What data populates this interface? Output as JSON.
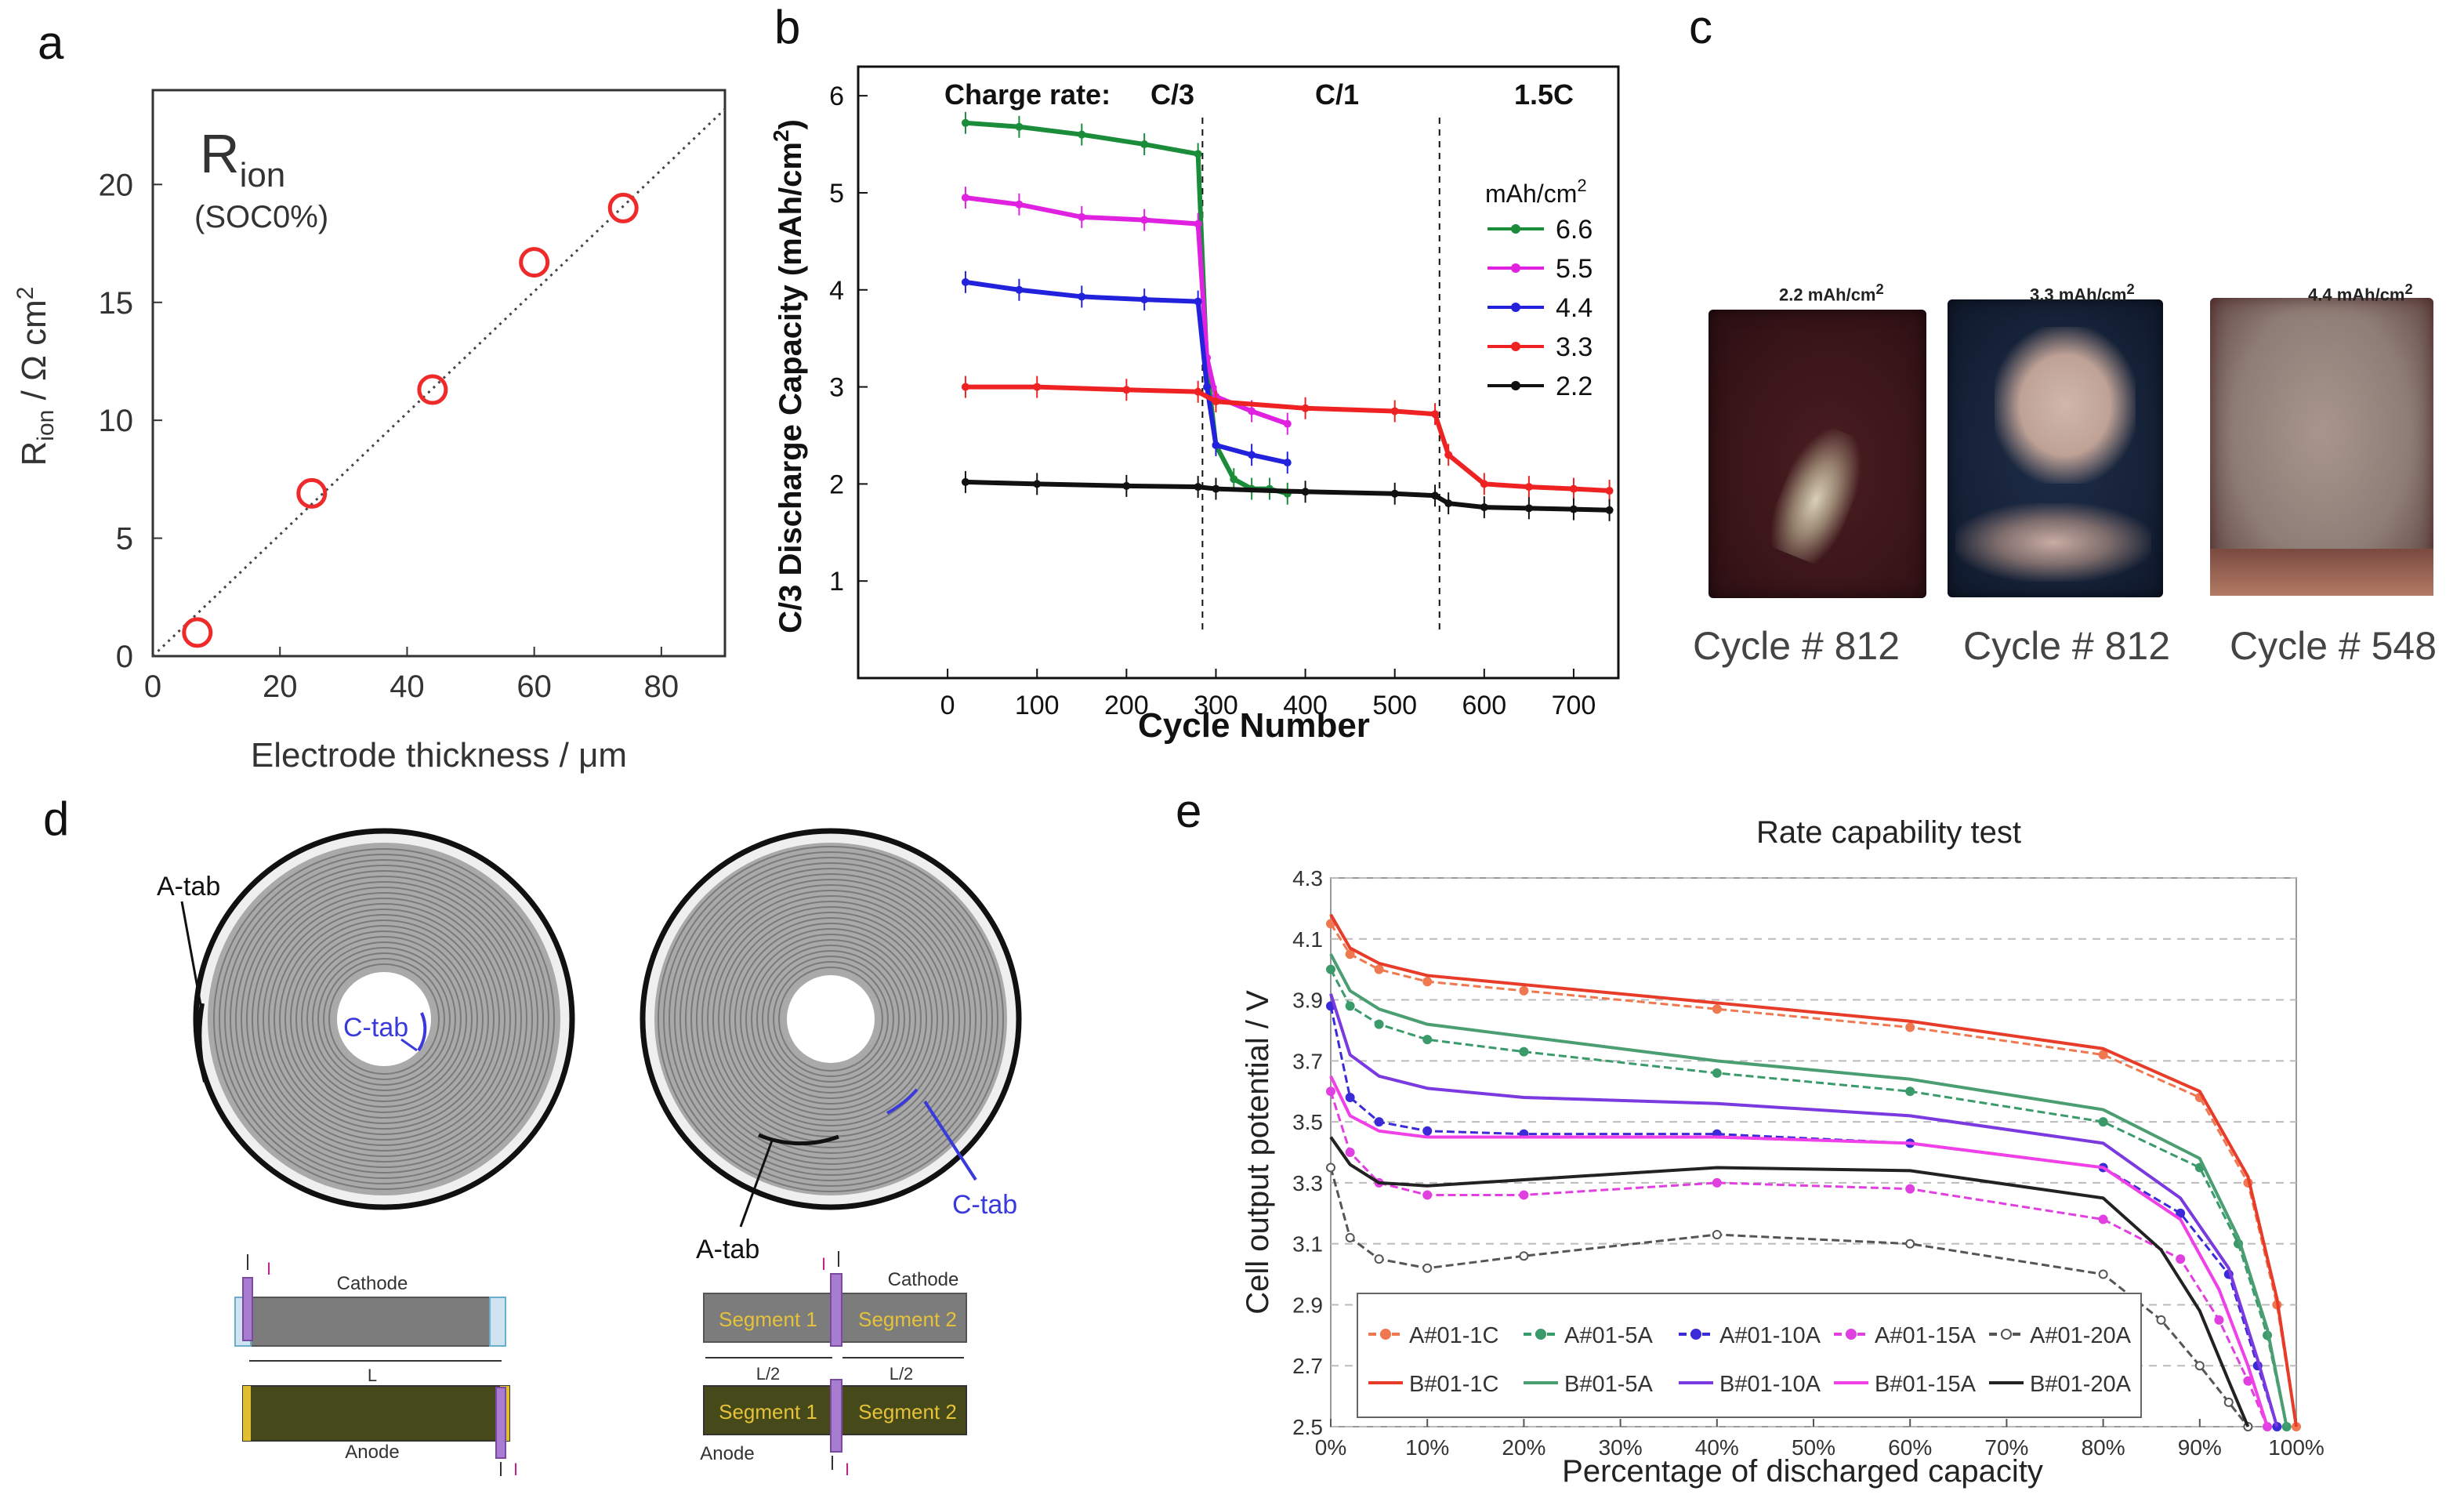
{
  "panels": {
    "a": "a",
    "b": "b",
    "c": "c",
    "d": "d",
    "e": "e"
  },
  "panel_a": {
    "label_main": "R",
    "label_sub": "ion",
    "label_soc": "(SOC0%)",
    "ylabel_pre": "R",
    "ylabel_sub": "ion",
    "ylabel_post": " / Ω cm",
    "ylabel_sup": "2",
    "xlabel": "Electrode thickness / μm"
  },
  "panel_b": {
    "charge_rate_label": "Charge rate:",
    "rate_c3": "C/3",
    "rate_c1": "C/1",
    "rate_15c": "1.5C",
    "legend_title": "mAh/cm",
    "legend_title_sup": "2",
    "ylabel": "C/3 Discharge Capacity (mAh/cm",
    "ylabel_sup": "2",
    "ylabel_end": ")",
    "xlabel": "Cycle Number"
  },
  "panel_c": {
    "photos": [
      {
        "label": "2.2 mAh/cm",
        "sup": "2",
        "caption": "Cycle # 812"
      },
      {
        "label": "3.3 mAh/cm",
        "sup": "2",
        "caption": "Cycle # 812"
      },
      {
        "label": "4.4 mAh/cm",
        "sup": "2",
        "caption": "Cycle # 548"
      }
    ]
  },
  "panel_d": {
    "a_tab": "A-tab",
    "c_tab": "C-tab",
    "cathode": "Cathode",
    "anode": "Anode",
    "L": "L",
    "L2": "L/2",
    "segment1": "Segment 1",
    "segment2": "Segment 2",
    "current": "I"
  },
  "panel_e": {
    "title": "Rate capability test",
    "xlabel": "Percentage of discharged capacity",
    "ylabel": "Cell output potential / V"
  },
  "chart_data": [
    {
      "id": "a",
      "type": "scatter",
      "title": "Rion (SOC0%)",
      "xlabel": "Electrode thickness / μm",
      "ylabel": "Rion / Ω cm2",
      "xlim": [
        0,
        90
      ],
      "ylim": [
        0,
        24
      ],
      "xticks": [
        0,
        20,
        40,
        60,
        80
      ],
      "yticks": [
        0,
        5,
        10,
        15,
        20
      ],
      "x": [
        7,
        25,
        44,
        60,
        74
      ],
      "y": [
        1.0,
        6.9,
        11.3,
        16.7,
        19.0
      ],
      "fit_line": {
        "x": [
          0,
          90
        ],
        "y": [
          0,
          23.2
        ],
        "style": "dotted"
      }
    },
    {
      "id": "b",
      "type": "line",
      "xlabel": "Cycle Number",
      "ylabel": "C/3 Discharge Capacity (mAh/cm2)",
      "xlim": [
        -100,
        750
      ],
      "ylim": [
        0,
        6.3
      ],
      "xticks": [
        0,
        100,
        200,
        300,
        400,
        500,
        600,
        700
      ],
      "yticks": [
        1,
        2,
        3,
        4,
        5,
        6
      ],
      "rate_boundaries": [
        285,
        550
      ],
      "series": [
        {
          "name": "6.6",
          "color": "#1a8c3a",
          "x": [
            20,
            80,
            150,
            220,
            280,
            290,
            300,
            320,
            340,
            360,
            380
          ],
          "y": [
            5.72,
            5.68,
            5.6,
            5.5,
            5.4,
            3.2,
            2.4,
            2.05,
            1.95,
            1.95,
            1.9
          ]
        },
        {
          "name": "5.5",
          "color": "#e022e0",
          "x": [
            20,
            80,
            150,
            220,
            280,
            290,
            300,
            340,
            380
          ],
          "y": [
            4.95,
            4.88,
            4.75,
            4.72,
            4.68,
            3.3,
            2.9,
            2.75,
            2.62
          ]
        },
        {
          "name": "4.4",
          "color": "#2222dd",
          "x": [
            20,
            80,
            150,
            220,
            280,
            290,
            300,
            340,
            380
          ],
          "y": [
            4.08,
            4.0,
            3.93,
            3.9,
            3.88,
            3.0,
            2.4,
            2.3,
            2.22
          ]
        },
        {
          "name": "3.3",
          "color": "#ee2222",
          "x": [
            20,
            100,
            200,
            280,
            300,
            400,
            500,
            545,
            560,
            600,
            650,
            700,
            740
          ],
          "y": [
            3.0,
            3.0,
            2.97,
            2.95,
            2.85,
            2.78,
            2.75,
            2.72,
            2.3,
            2.0,
            1.97,
            1.95,
            1.93
          ]
        },
        {
          "name": "2.2",
          "color": "#111111",
          "x": [
            20,
            100,
            200,
            280,
            300,
            400,
            500,
            545,
            560,
            600,
            650,
            700,
            740
          ],
          "y": [
            2.02,
            2.0,
            1.98,
            1.97,
            1.95,
            1.92,
            1.9,
            1.88,
            1.8,
            1.76,
            1.75,
            1.74,
            1.73
          ]
        }
      ]
    },
    {
      "id": "e",
      "type": "line",
      "title": "Rate capability test",
      "xlabel": "Percentage of discharged capacity",
      "ylabel": "Cell output potential / V",
      "xlim": [
        0,
        100
      ],
      "ylim": [
        2.5,
        4.3
      ],
      "xticks": [
        "0%",
        "10%",
        "20%",
        "30%",
        "40%",
        "50%",
        "60%",
        "70%",
        "80%",
        "90%",
        "100%"
      ],
      "yticks": [
        2.5,
        2.7,
        2.9,
        3.1,
        3.3,
        3.5,
        3.7,
        3.9,
        4.1,
        4.3
      ],
      "series": [
        {
          "name": "A#01-1C",
          "color": "#f07850",
          "marker": "+",
          "x": [
            0,
            2,
            5,
            10,
            20,
            40,
            60,
            80,
            90,
            95,
            98,
            100
          ],
          "y": [
            4.15,
            4.05,
            4.0,
            3.96,
            3.93,
            3.87,
            3.81,
            3.72,
            3.58,
            3.3,
            2.9,
            2.5
          ]
        },
        {
          "name": "A#01-5A",
          "color": "#3a9a6a",
          "marker": "diamond",
          "x": [
            0,
            2,
            5,
            10,
            20,
            40,
            60,
            80,
            90,
            94,
            97,
            99
          ],
          "y": [
            4.0,
            3.88,
            3.82,
            3.77,
            3.73,
            3.66,
            3.6,
            3.5,
            3.35,
            3.1,
            2.8,
            2.5
          ]
        },
        {
          "name": "A#01-10A",
          "color": "#3a2ad8",
          "marker": "triangle",
          "x": [
            0,
            2,
            5,
            10,
            20,
            40,
            60,
            80,
            88,
            93,
            96,
            98
          ],
          "y": [
            3.88,
            3.58,
            3.5,
            3.47,
            3.46,
            3.46,
            3.43,
            3.35,
            3.2,
            3.0,
            2.7,
            2.5
          ]
        },
        {
          "name": "A#01-15A",
          "color": "#e040e0",
          "marker": "circle",
          "x": [
            0,
            2,
            5,
            10,
            20,
            40,
            60,
            80,
            88,
            92,
            95,
            97
          ],
          "y": [
            3.6,
            3.4,
            3.3,
            3.26,
            3.26,
            3.3,
            3.28,
            3.18,
            3.05,
            2.85,
            2.65,
            2.5
          ]
        },
        {
          "name": "A#01-20A",
          "color": "#555555",
          "marker": "open-circle",
          "x": [
            0,
            2,
            5,
            10,
            20,
            40,
            60,
            80,
            86,
            90,
            93,
            95
          ],
          "y": [
            3.35,
            3.12,
            3.05,
            3.02,
            3.06,
            3.13,
            3.1,
            3.0,
            2.85,
            2.7,
            2.58,
            2.5
          ]
        },
        {
          "name": "B#01-1C",
          "color": "#e83c2a",
          "marker": "none",
          "x": [
            0,
            2,
            5,
            10,
            20,
            40,
            60,
            80,
            90,
            95,
            98,
            100
          ],
          "y": [
            4.18,
            4.07,
            4.02,
            3.98,
            3.95,
            3.89,
            3.83,
            3.74,
            3.6,
            3.32,
            2.92,
            2.5
          ]
        },
        {
          "name": "B#01-5A",
          "color": "#4a9e72",
          "marker": "none",
          "x": [
            0,
            2,
            5,
            10,
            20,
            40,
            60,
            80,
            90,
            94,
            97,
            99
          ],
          "y": [
            4.05,
            3.93,
            3.87,
            3.82,
            3.78,
            3.7,
            3.64,
            3.54,
            3.38,
            3.12,
            2.82,
            2.5
          ]
        },
        {
          "name": "B#01-10A",
          "color": "#7a3ae0",
          "marker": "none",
          "x": [
            0,
            2,
            5,
            10,
            20,
            40,
            60,
            80,
            88,
            93,
            96,
            98
          ],
          "y": [
            3.92,
            3.72,
            3.65,
            3.61,
            3.58,
            3.56,
            3.52,
            3.43,
            3.25,
            3.02,
            2.72,
            2.5
          ]
        },
        {
          "name": "B#01-15A",
          "color": "#f040e8",
          "marker": "none",
          "x": [
            0,
            2,
            5,
            10,
            20,
            40,
            60,
            80,
            88,
            92,
            95,
            97
          ],
          "y": [
            3.65,
            3.52,
            3.47,
            3.45,
            3.45,
            3.45,
            3.43,
            3.35,
            3.18,
            2.95,
            2.7,
            2.5
          ]
        },
        {
          "name": "B#01-20A",
          "color": "#222222",
          "marker": "none",
          "x": [
            0,
            2,
            5,
            10,
            20,
            40,
            60,
            80,
            86,
            90,
            93,
            95
          ],
          "y": [
            3.45,
            3.36,
            3.3,
            3.29,
            3.31,
            3.35,
            3.34,
            3.25,
            3.08,
            2.88,
            2.65,
            2.5
          ]
        }
      ]
    }
  ]
}
